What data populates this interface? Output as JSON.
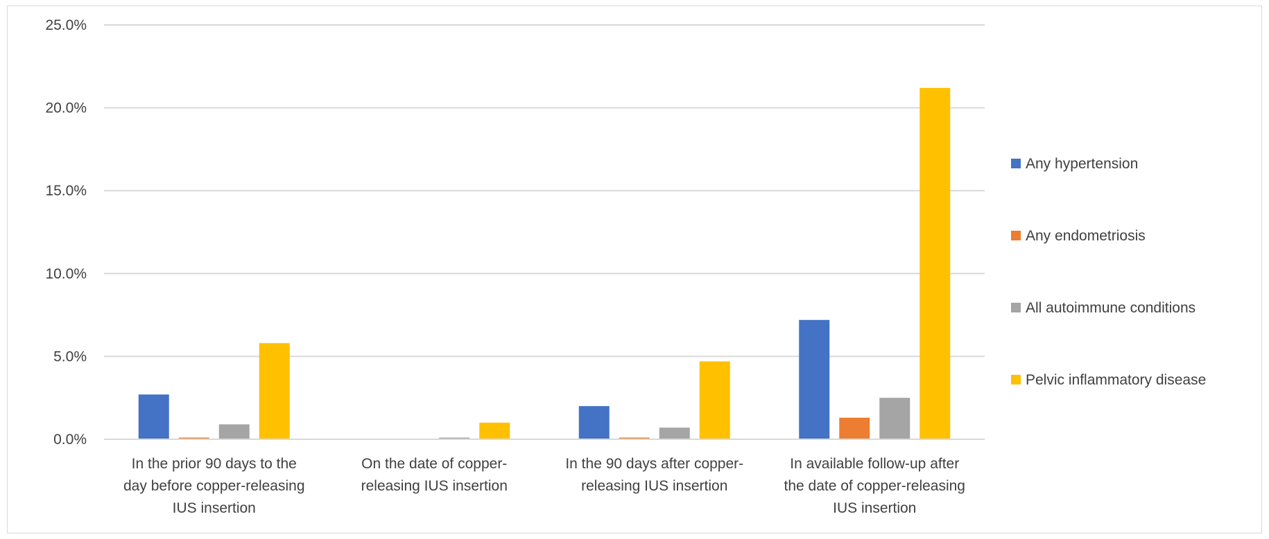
{
  "chart_data": {
    "type": "bar",
    "title": "",
    "xlabel": "",
    "ylabel": "",
    "ylim": [
      0,
      25
    ],
    "yticks": [
      0,
      5,
      10,
      15,
      20,
      25
    ],
    "ytick_labels": [
      "0.0%",
      "5.0%",
      "10.0%",
      "15.0%",
      "20.0%",
      "25.0%"
    ],
    "grid": true,
    "legend_position": "right",
    "categories": [
      [
        "In the prior 90 days to the",
        "day before copper-releasing",
        "IUS insertion"
      ],
      [
        "On the date of copper-",
        "releasing IUS insertion"
      ],
      [
        "In the 90 days after copper-",
        "releasing IUS insertion"
      ],
      [
        "In available follow-up after",
        "the date of copper-releasing",
        "IUS insertion"
      ]
    ],
    "series": [
      {
        "name": "Any hypertension",
        "color": "#4472C4",
        "values": [
          2.7,
          0.0,
          2.0,
          7.2
        ]
      },
      {
        "name": "Any endometriosis",
        "color": "#ED7D31",
        "values": [
          0.1,
          0.0,
          0.1,
          1.3
        ]
      },
      {
        "name": "All autoimmune conditions",
        "color": "#A5A5A5",
        "values": [
          0.9,
          0.1,
          0.7,
          2.5
        ]
      },
      {
        "name": "Pelvic inflammatory disease",
        "color": "#FFC000",
        "values": [
          5.8,
          1.0,
          4.7,
          21.2
        ]
      }
    ]
  }
}
